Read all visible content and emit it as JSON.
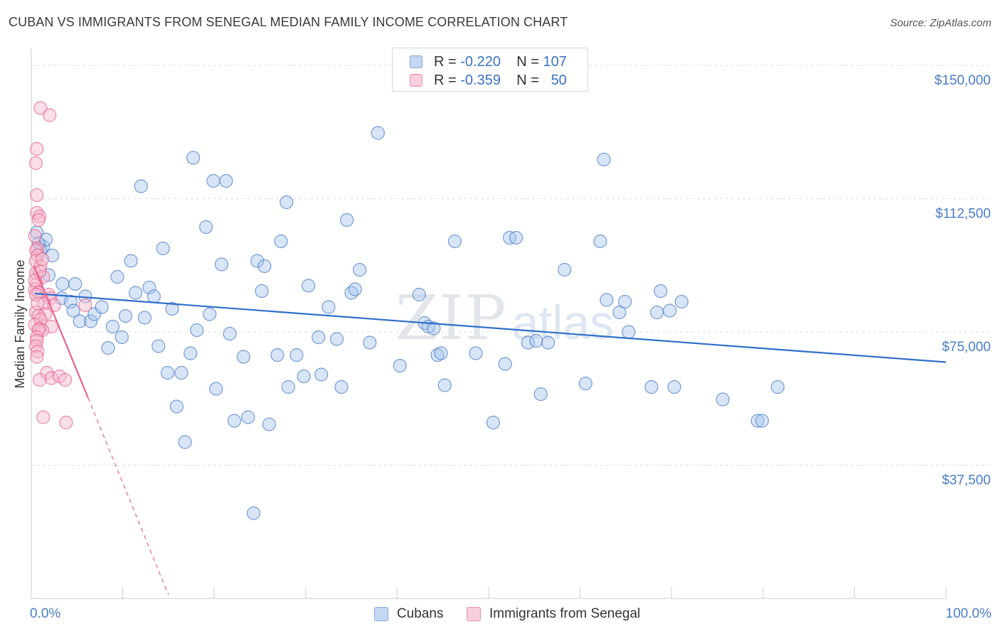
{
  "title": "CUBAN VS IMMIGRANTS FROM SENEGAL MEDIAN FAMILY INCOME CORRELATION CHART",
  "source": "Source: ZipAtlas.com",
  "watermark": {
    "zip": "ZIP",
    "atlas": "atlas"
  },
  "legend": {
    "rows": [
      {
        "r_label": "R =",
        "r_value": "-0.220",
        "n_label": "N =",
        "n_value": "107",
        "color": "#a9c6ee"
      },
      {
        "r_label": "R =",
        "r_value": "-0.359",
        "n_label": "N =",
        "n_value": "50",
        "color": "#f5b6cb"
      }
    ]
  },
  "chart_data": {
    "type": "scatter",
    "xlabel": "",
    "ylabel": "Median Family Income",
    "xlim": [
      0,
      100
    ],
    "ylim": [
      0,
      153000
    ],
    "x_tick_labels": [
      "0.0%",
      "100.0%"
    ],
    "y_ticks": [
      37500,
      75000,
      112500,
      150000
    ],
    "y_tick_labels": [
      "$37,500",
      "$75,000",
      "$112,500",
      "$150,000"
    ],
    "grid": true,
    "series": [
      {
        "name": "Cubans",
        "color": "#4a7cc8",
        "fill": "#a9c6ee",
        "trend": {
          "x": [
            0.4,
            100
          ],
          "y": [
            85800,
            66500
          ]
        },
        "points": [
          [
            0.6,
            103000
          ],
          [
            1.3,
            99000
          ],
          [
            1.6,
            101000
          ],
          [
            2.3,
            96500
          ],
          [
            1.9,
            91000
          ],
          [
            3.4,
            88500
          ],
          [
            4.8,
            88500
          ],
          [
            3.3,
            84500
          ],
          [
            4.3,
            83500
          ],
          [
            5.9,
            85000
          ],
          [
            4.6,
            81000
          ],
          [
            5.3,
            78000
          ],
          [
            6.5,
            78000
          ],
          [
            6.9,
            80000
          ],
          [
            7.7,
            82000
          ],
          [
            8.4,
            70500
          ],
          [
            8.9,
            76500
          ],
          [
            9.4,
            90500
          ],
          [
            9.9,
            73500
          ],
          [
            10.3,
            79500
          ],
          [
            10.9,
            95000
          ],
          [
            11.4,
            86000
          ],
          [
            12.0,
            116000
          ],
          [
            12.4,
            79000
          ],
          [
            12.9,
            87500
          ],
          [
            13.4,
            85000
          ],
          [
            13.9,
            71000
          ],
          [
            14.4,
            98500
          ],
          [
            14.9,
            63500
          ],
          [
            15.4,
            81500
          ],
          [
            15.9,
            54000
          ],
          [
            16.4,
            63500
          ],
          [
            16.8,
            44000
          ],
          [
            17.4,
            69000
          ],
          [
            17.7,
            124000
          ],
          [
            18.1,
            75500
          ],
          [
            19.1,
            104500
          ],
          [
            19.5,
            80000
          ],
          [
            19.9,
            117500
          ],
          [
            20.2,
            59000
          ],
          [
            20.8,
            94000
          ],
          [
            21.3,
            117500
          ],
          [
            21.7,
            74500
          ],
          [
            22.2,
            50000
          ],
          [
            23.2,
            68000
          ],
          [
            23.7,
            51000
          ],
          [
            24.3,
            24000
          ],
          [
            24.7,
            95000
          ],
          [
            25.2,
            86500
          ],
          [
            25.5,
            93500
          ],
          [
            26.0,
            49000
          ],
          [
            26.9,
            68500
          ],
          [
            27.3,
            100500
          ],
          [
            27.9,
            111500
          ],
          [
            28.1,
            59500
          ],
          [
            29.0,
            68500
          ],
          [
            29.8,
            62500
          ],
          [
            30.3,
            88000
          ],
          [
            31.4,
            73500
          ],
          [
            31.7,
            63000
          ],
          [
            32.5,
            82000
          ],
          [
            33.4,
            73000
          ],
          [
            33.9,
            59500
          ],
          [
            34.5,
            106500
          ],
          [
            35.0,
            86000
          ],
          [
            35.4,
            87000
          ],
          [
            35.9,
            92500
          ],
          [
            37.0,
            72000
          ],
          [
            37.9,
            131000
          ],
          [
            40.3,
            65500
          ],
          [
            42.4,
            85500
          ],
          [
            43.0,
            77500
          ],
          [
            43.4,
            76500
          ],
          [
            44.0,
            76000
          ],
          [
            44.4,
            68500
          ],
          [
            44.8,
            69000
          ],
          [
            45.2,
            60000
          ],
          [
            46.3,
            100500
          ],
          [
            48.6,
            69000
          ],
          [
            50.5,
            49500
          ],
          [
            51.8,
            66000
          ],
          [
            52.3,
            101500
          ],
          [
            53.0,
            101500
          ],
          [
            54.3,
            72000
          ],
          [
            55.2,
            72500
          ],
          [
            55.7,
            57500
          ],
          [
            56.5,
            72000
          ],
          [
            58.3,
            92500
          ],
          [
            60.6,
            60500
          ],
          [
            62.2,
            100500
          ],
          [
            62.6,
            123500
          ],
          [
            62.9,
            84000
          ],
          [
            64.3,
            80500
          ],
          [
            64.9,
            83500
          ],
          [
            65.3,
            75000
          ],
          [
            67.8,
            59500
          ],
          [
            68.4,
            80500
          ],
          [
            68.8,
            86500
          ],
          [
            69.8,
            81000
          ],
          [
            70.3,
            59500
          ],
          [
            71.1,
            83500
          ],
          [
            75.6,
            56000
          ],
          [
            79.4,
            50000
          ],
          [
            79.9,
            50000
          ],
          [
            81.6,
            59500
          ],
          [
            1.0,
            98000
          ],
          [
            0.8,
            100000
          ]
        ]
      },
      {
        "name": "Immigrants from Senegal",
        "color": "#e8638f",
        "fill": "#f5b6cb",
        "trend": {
          "x": [
            0.3,
            6.2
          ],
          "y": [
            93500,
            56500
          ]
        },
        "trend_dashed": {
          "x": [
            6.2,
            15.0
          ],
          "y": [
            56500,
            1000
          ]
        },
        "points": [
          [
            1.0,
            138000
          ],
          [
            2.0,
            136000
          ],
          [
            0.6,
            126500
          ],
          [
            0.5,
            122500
          ],
          [
            0.6,
            113500
          ],
          [
            0.6,
            108500
          ],
          [
            0.9,
            107500
          ],
          [
            0.8,
            106500
          ],
          [
            0.4,
            102000
          ],
          [
            0.7,
            98500
          ],
          [
            0.5,
            98000
          ],
          [
            0.7,
            96500
          ],
          [
            0.5,
            95000
          ],
          [
            1.0,
            93500
          ],
          [
            0.5,
            91500
          ],
          [
            1.3,
            90500
          ],
          [
            0.6,
            88500
          ],
          [
            0.4,
            87000
          ],
          [
            0.8,
            86000
          ],
          [
            1.9,
            85500
          ],
          [
            0.5,
            85500
          ],
          [
            2.1,
            84500
          ],
          [
            1.4,
            83000
          ],
          [
            2.5,
            82500
          ],
          [
            5.9,
            82500
          ],
          [
            0.5,
            80500
          ],
          [
            1.5,
            80000
          ],
          [
            0.8,
            79500
          ],
          [
            1.0,
            78500
          ],
          [
            0.4,
            77000
          ],
          [
            2.2,
            76500
          ],
          [
            0.9,
            76000
          ],
          [
            1.2,
            75500
          ],
          [
            0.8,
            75500
          ],
          [
            0.6,
            73500
          ],
          [
            0.6,
            72500
          ],
          [
            0.5,
            71000
          ],
          [
            0.7,
            69500
          ],
          [
            0.6,
            68000
          ],
          [
            1.7,
            63500
          ],
          [
            2.2,
            62000
          ],
          [
            3.1,
            62500
          ],
          [
            3.7,
            61500
          ],
          [
            0.9,
            61500
          ],
          [
            1.3,
            51000
          ],
          [
            3.8,
            49500
          ],
          [
            0.7,
            83000
          ],
          [
            0.9,
            92000
          ],
          [
            1.2,
            95500
          ],
          [
            0.4,
            89500
          ]
        ]
      }
    ],
    "legend_entries": [
      "Cubans",
      "Immigrants from Senegal"
    ],
    "legend_placement": "top-center and bottom"
  }
}
